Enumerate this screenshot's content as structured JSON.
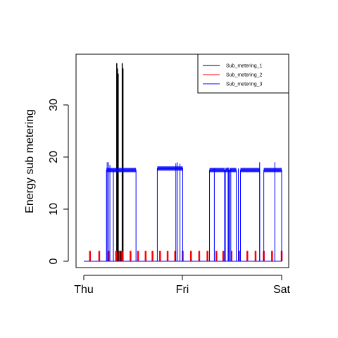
{
  "chart_data": {
    "type": "line",
    "title": "",
    "xlabel": "",
    "ylabel": "Energy sub metering",
    "x_range_minutes": [
      0,
      2880
    ],
    "ylim": [
      0,
      38
    ],
    "y_ticks": [
      0,
      10,
      20,
      30
    ],
    "x_ticks": [
      {
        "label": "Thu",
        "minute": 0
      },
      {
        "label": "Fri",
        "minute": 1440
      },
      {
        "label": "Sat",
        "minute": 2880
      }
    ],
    "grid": false,
    "legend": {
      "placement": "top-right",
      "entries": [
        "Sub_metering_1",
        "Sub_metering_2",
        "Sub_metering_3"
      ]
    },
    "series": [
      {
        "name": "Sub_metering_1",
        "color": "#000000",
        "style": "spike",
        "spikes": [
          [
            480,
            38
          ],
          [
            490,
            37
          ],
          [
            500,
            36
          ],
          [
            520,
            2
          ],
          [
            540,
            2
          ],
          [
            560,
            38
          ],
          [
            570,
            37
          ]
        ]
      },
      {
        "name": "Sub_metering_2",
        "color": "#ff0000",
        "style": "spike",
        "spikes": [
          [
            90,
            2
          ],
          [
            225,
            2
          ],
          [
            360,
            2
          ],
          [
            470,
            2
          ],
          [
            520,
            2
          ],
          [
            560,
            2
          ],
          [
            680,
            2
          ],
          [
            790,
            2
          ],
          [
            900,
            2
          ],
          [
            1000,
            2
          ],
          [
            1110,
            2
          ],
          [
            1220,
            2
          ],
          [
            1330,
            2
          ],
          [
            1440,
            2
          ],
          [
            1560,
            2
          ],
          [
            1680,
            2
          ],
          [
            1800,
            2
          ],
          [
            1930,
            2
          ],
          [
            2030,
            2
          ],
          [
            2150,
            2
          ],
          [
            2260,
            2
          ],
          [
            2380,
            2
          ],
          [
            2500,
            2
          ],
          [
            2620,
            2
          ],
          [
            2740,
            2
          ],
          [
            2880,
            2
          ]
        ]
      },
      {
        "name": "Sub_metering_3",
        "color": "#0000ff",
        "style": "blocks",
        "blocks": [
          [
            330,
            430,
            17.5
          ],
          [
            430,
            760,
            17.5
          ],
          [
            1070,
            1440,
            17.8
          ],
          [
            1830,
            2050,
            17.5
          ],
          [
            2060,
            2110,
            17.5
          ],
          [
            2120,
            2220,
            17.5
          ],
          [
            2280,
            2560,
            17.5
          ],
          [
            2620,
            2880,
            17.5
          ]
        ],
        "spikes": [
          [
            340,
            19
          ],
          [
            360,
            19
          ],
          [
            380,
            18.5
          ],
          [
            1340,
            18.8
          ],
          [
            1360,
            19
          ],
          [
            1400,
            18.7
          ],
          [
            1900,
            17.9
          ],
          [
            2100,
            18.0
          ],
          [
            2140,
            17.7
          ],
          [
            2250,
            17.8
          ],
          [
            2560,
            19
          ],
          [
            2780,
            19
          ]
        ]
      }
    ]
  }
}
